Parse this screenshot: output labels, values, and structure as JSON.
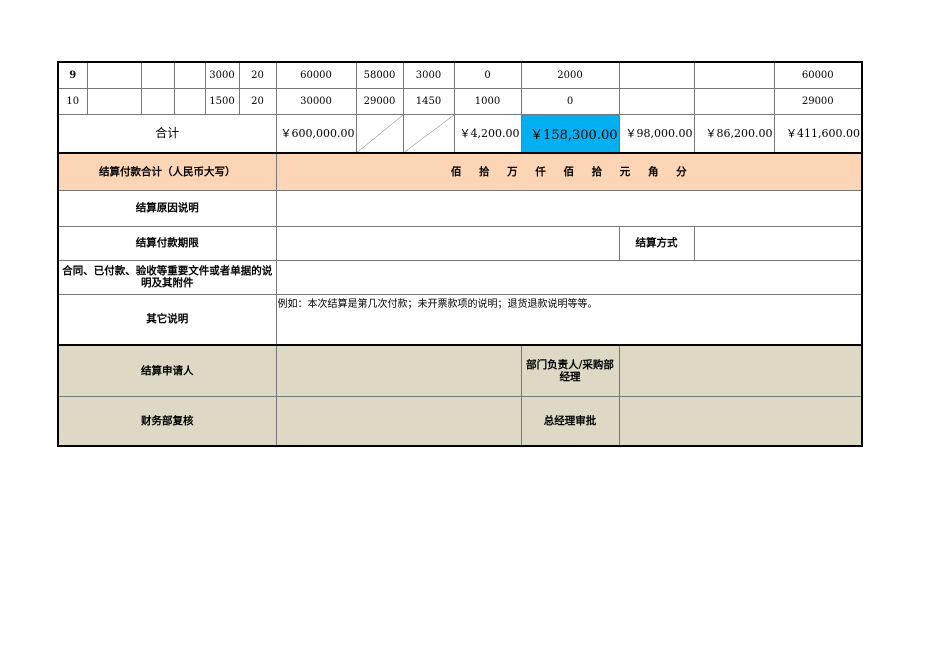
{
  "rows": [
    {
      "no": "9",
      "c1": "",
      "c2": "",
      "c3": "",
      "qty": "3000",
      "price": "20",
      "amount": "60000",
      "c7": "58000",
      "c8": "3000",
      "c9": "0",
      "c10": "2000",
      "c11": "",
      "c12": "",
      "c13": "60000"
    },
    {
      "no": "10",
      "c1": "",
      "c2": "",
      "c3": "",
      "qty": "1500",
      "price": "20",
      "amount": "30000",
      "c7": "29000",
      "c8": "1450",
      "c9": "1000",
      "c10": "0",
      "c11": "",
      "c12": "",
      "c13": "29000"
    }
  ],
  "total": {
    "label": "合计",
    "amount": "￥600,000.00",
    "c9": "￥4,200.00",
    "c10": "￥158,300.00",
    "c11": "￥98,000.00",
    "c12": "￥86,200.00",
    "c13": "￥411,600.00",
    "highlight_color": "#00b0f0"
  },
  "uppercase": {
    "label": "结算付款合计（人民币大写）",
    "units": "佰 拾 万 仟 佰 拾 元 角 分",
    "color": "#fcd5b4"
  },
  "reason": {
    "label": "结算原因说明",
    "value": ""
  },
  "period": {
    "label": "结算付款期限",
    "value": "",
    "method_label": "结算方式",
    "method_value": ""
  },
  "attachments": {
    "label": "合同、已付款、验收等重要文件或者单据的说明及其附件",
    "value": ""
  },
  "other": {
    "label": "其它说明",
    "value": "例如：本次结算是第几次付款；未开票款项的说明；退货退款说明等等。"
  },
  "signatures": {
    "color": "#ddd9c4",
    "applicant_label": "结算申请人",
    "dept_label": "部门负责人/采购部经理",
    "finance_label": "财务部复核",
    "gm_label": "总经理审批"
  }
}
